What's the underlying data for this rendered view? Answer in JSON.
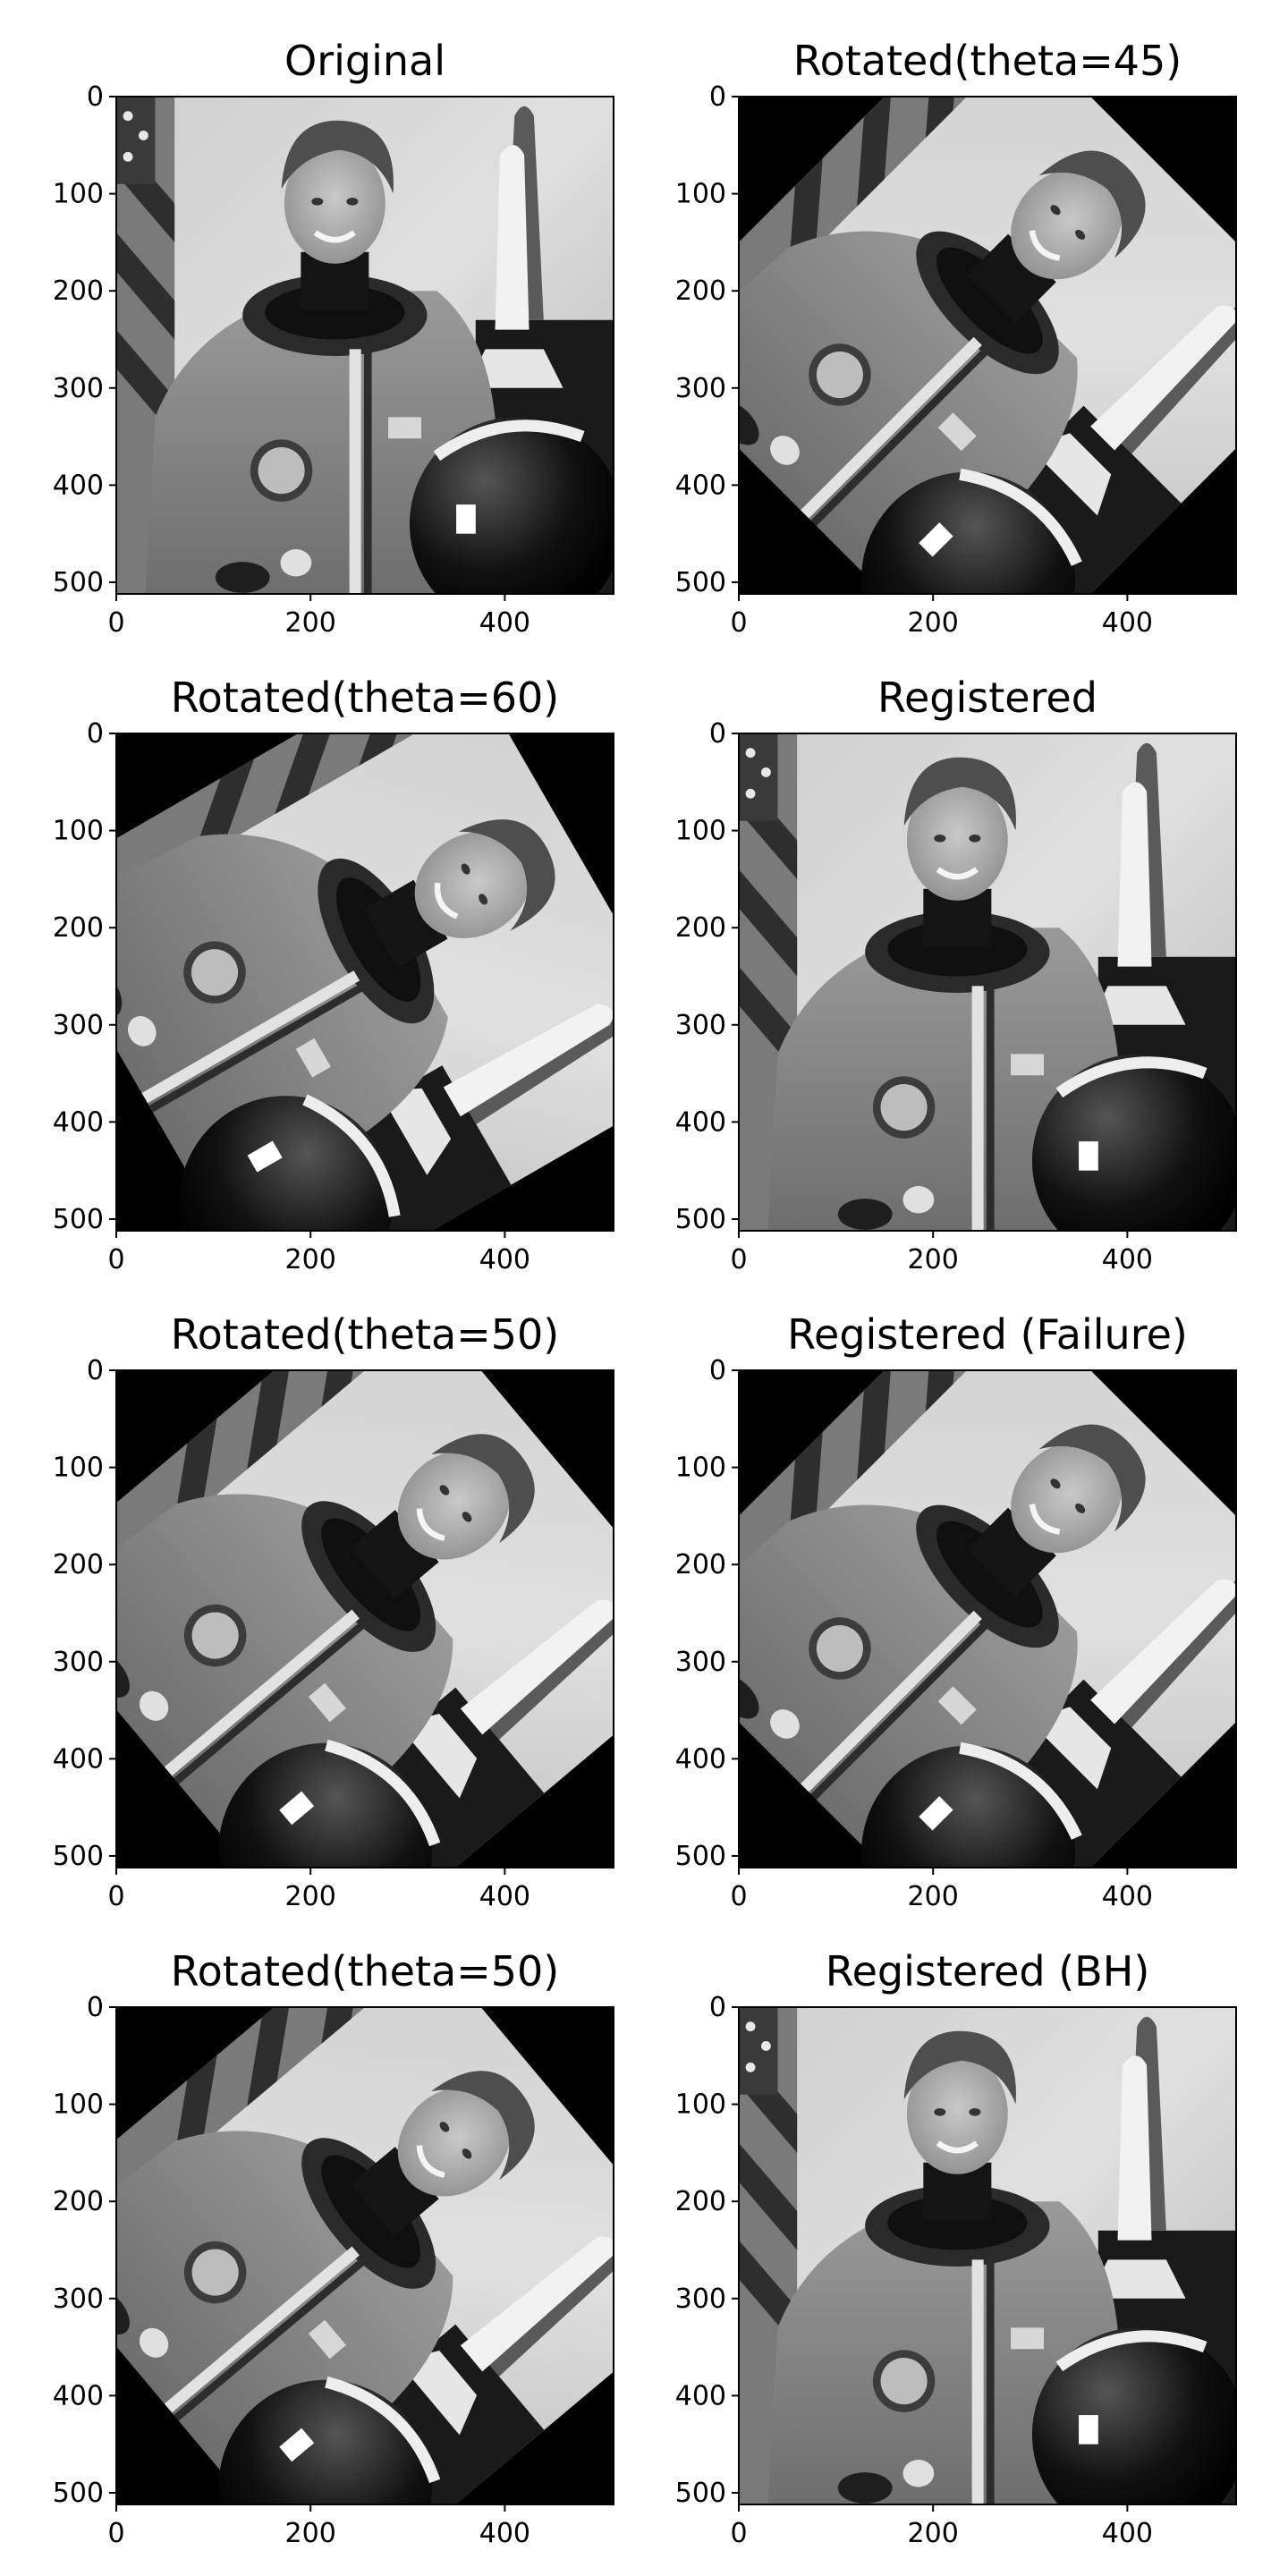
{
  "chart_data": [
    {
      "type": "image",
      "title": "Original",
      "rotation_deg": 0,
      "xlim": [
        0,
        512
      ],
      "ylim": [
        0,
        512
      ],
      "xticks": [
        0,
        200,
        400
      ],
      "yticks": [
        0,
        100,
        200,
        300,
        400,
        500
      ],
      "xtick_labels": [
        "0",
        "200",
        "400"
      ],
      "ytick_labels": [
        "0",
        "100",
        "200",
        "300",
        "400",
        "500"
      ],
      "colormap": "gray",
      "grid": false,
      "legend": "none"
    },
    {
      "type": "image",
      "title": "Rotated(theta=45)",
      "rotation_deg": 45,
      "xlim": [
        0,
        512
      ],
      "ylim": [
        0,
        512
      ],
      "xticks": [
        0,
        200,
        400
      ],
      "yticks": [
        0,
        100,
        200,
        300,
        400,
        500
      ],
      "xtick_labels": [
        "0",
        "200",
        "400"
      ],
      "ytick_labels": [
        "0",
        "100",
        "200",
        "300",
        "400",
        "500"
      ],
      "colormap": "gray",
      "grid": false,
      "legend": "none"
    },
    {
      "type": "image",
      "title": "Rotated(theta=60)",
      "rotation_deg": 60,
      "xlim": [
        0,
        512
      ],
      "ylim": [
        0,
        512
      ],
      "xticks": [
        0,
        200,
        400
      ],
      "yticks": [
        0,
        100,
        200,
        300,
        400,
        500
      ],
      "xtick_labels": [
        "0",
        "200",
        "400"
      ],
      "ytick_labels": [
        "0",
        "100",
        "200",
        "300",
        "400",
        "500"
      ],
      "colormap": "gray",
      "grid": false,
      "legend": "none"
    },
    {
      "type": "image",
      "title": "Registered",
      "rotation_deg": 0,
      "xlim": [
        0,
        512
      ],
      "ylim": [
        0,
        512
      ],
      "xticks": [
        0,
        200,
        400
      ],
      "yticks": [
        0,
        100,
        200,
        300,
        400,
        500
      ],
      "xtick_labels": [
        "0",
        "200",
        "400"
      ],
      "ytick_labels": [
        "0",
        "100",
        "200",
        "300",
        "400",
        "500"
      ],
      "colormap": "gray",
      "grid": false,
      "legend": "none"
    },
    {
      "type": "image",
      "title": "Rotated(theta=50)",
      "rotation_deg": 50,
      "xlim": [
        0,
        512
      ],
      "ylim": [
        0,
        512
      ],
      "xticks": [
        0,
        200,
        400
      ],
      "yticks": [
        0,
        100,
        200,
        300,
        400,
        500
      ],
      "xtick_labels": [
        "0",
        "200",
        "400"
      ],
      "ytick_labels": [
        "0",
        "100",
        "200",
        "300",
        "400",
        "500"
      ],
      "colormap": "gray",
      "grid": false,
      "legend": "none"
    },
    {
      "type": "image",
      "title": "Registered (Failure)",
      "rotation_deg": 45,
      "xlim": [
        0,
        512
      ],
      "ylim": [
        0,
        512
      ],
      "xticks": [
        0,
        200,
        400
      ],
      "yticks": [
        0,
        100,
        200,
        300,
        400,
        500
      ],
      "xtick_labels": [
        "0",
        "200",
        "400"
      ],
      "ytick_labels": [
        "0",
        "100",
        "200",
        "300",
        "400",
        "500"
      ],
      "colormap": "gray",
      "grid": false,
      "legend": "none"
    },
    {
      "type": "image",
      "title": "Rotated(theta=50)",
      "rotation_deg": 50,
      "xlim": [
        0,
        512
      ],
      "ylim": [
        0,
        512
      ],
      "xticks": [
        0,
        200,
        400
      ],
      "yticks": [
        0,
        100,
        200,
        300,
        400,
        500
      ],
      "xtick_labels": [
        "0",
        "200",
        "400"
      ],
      "ytick_labels": [
        "0",
        "100",
        "200",
        "300",
        "400",
        "500"
      ],
      "colormap": "gray",
      "grid": false,
      "legend": "none"
    },
    {
      "type": "image",
      "title": "Registered (BH)",
      "rotation_deg": 0,
      "xlim": [
        0,
        512
      ],
      "ylim": [
        0,
        512
      ],
      "xticks": [
        0,
        200,
        400
      ],
      "yticks": [
        0,
        100,
        200,
        300,
        400,
        500
      ],
      "xtick_labels": [
        "0",
        "200",
        "400"
      ],
      "ytick_labels": [
        "0",
        "100",
        "200",
        "300",
        "400",
        "500"
      ],
      "colormap": "gray",
      "grid": false,
      "legend": "none"
    }
  ],
  "colors": {
    "background": "#ffffff",
    "axis": "#000000",
    "image_fill": "#000000",
    "photo_light": "#d8d8d8",
    "photo_mid": "#8a8a8a",
    "photo_dark": "#2a2a2a"
  }
}
